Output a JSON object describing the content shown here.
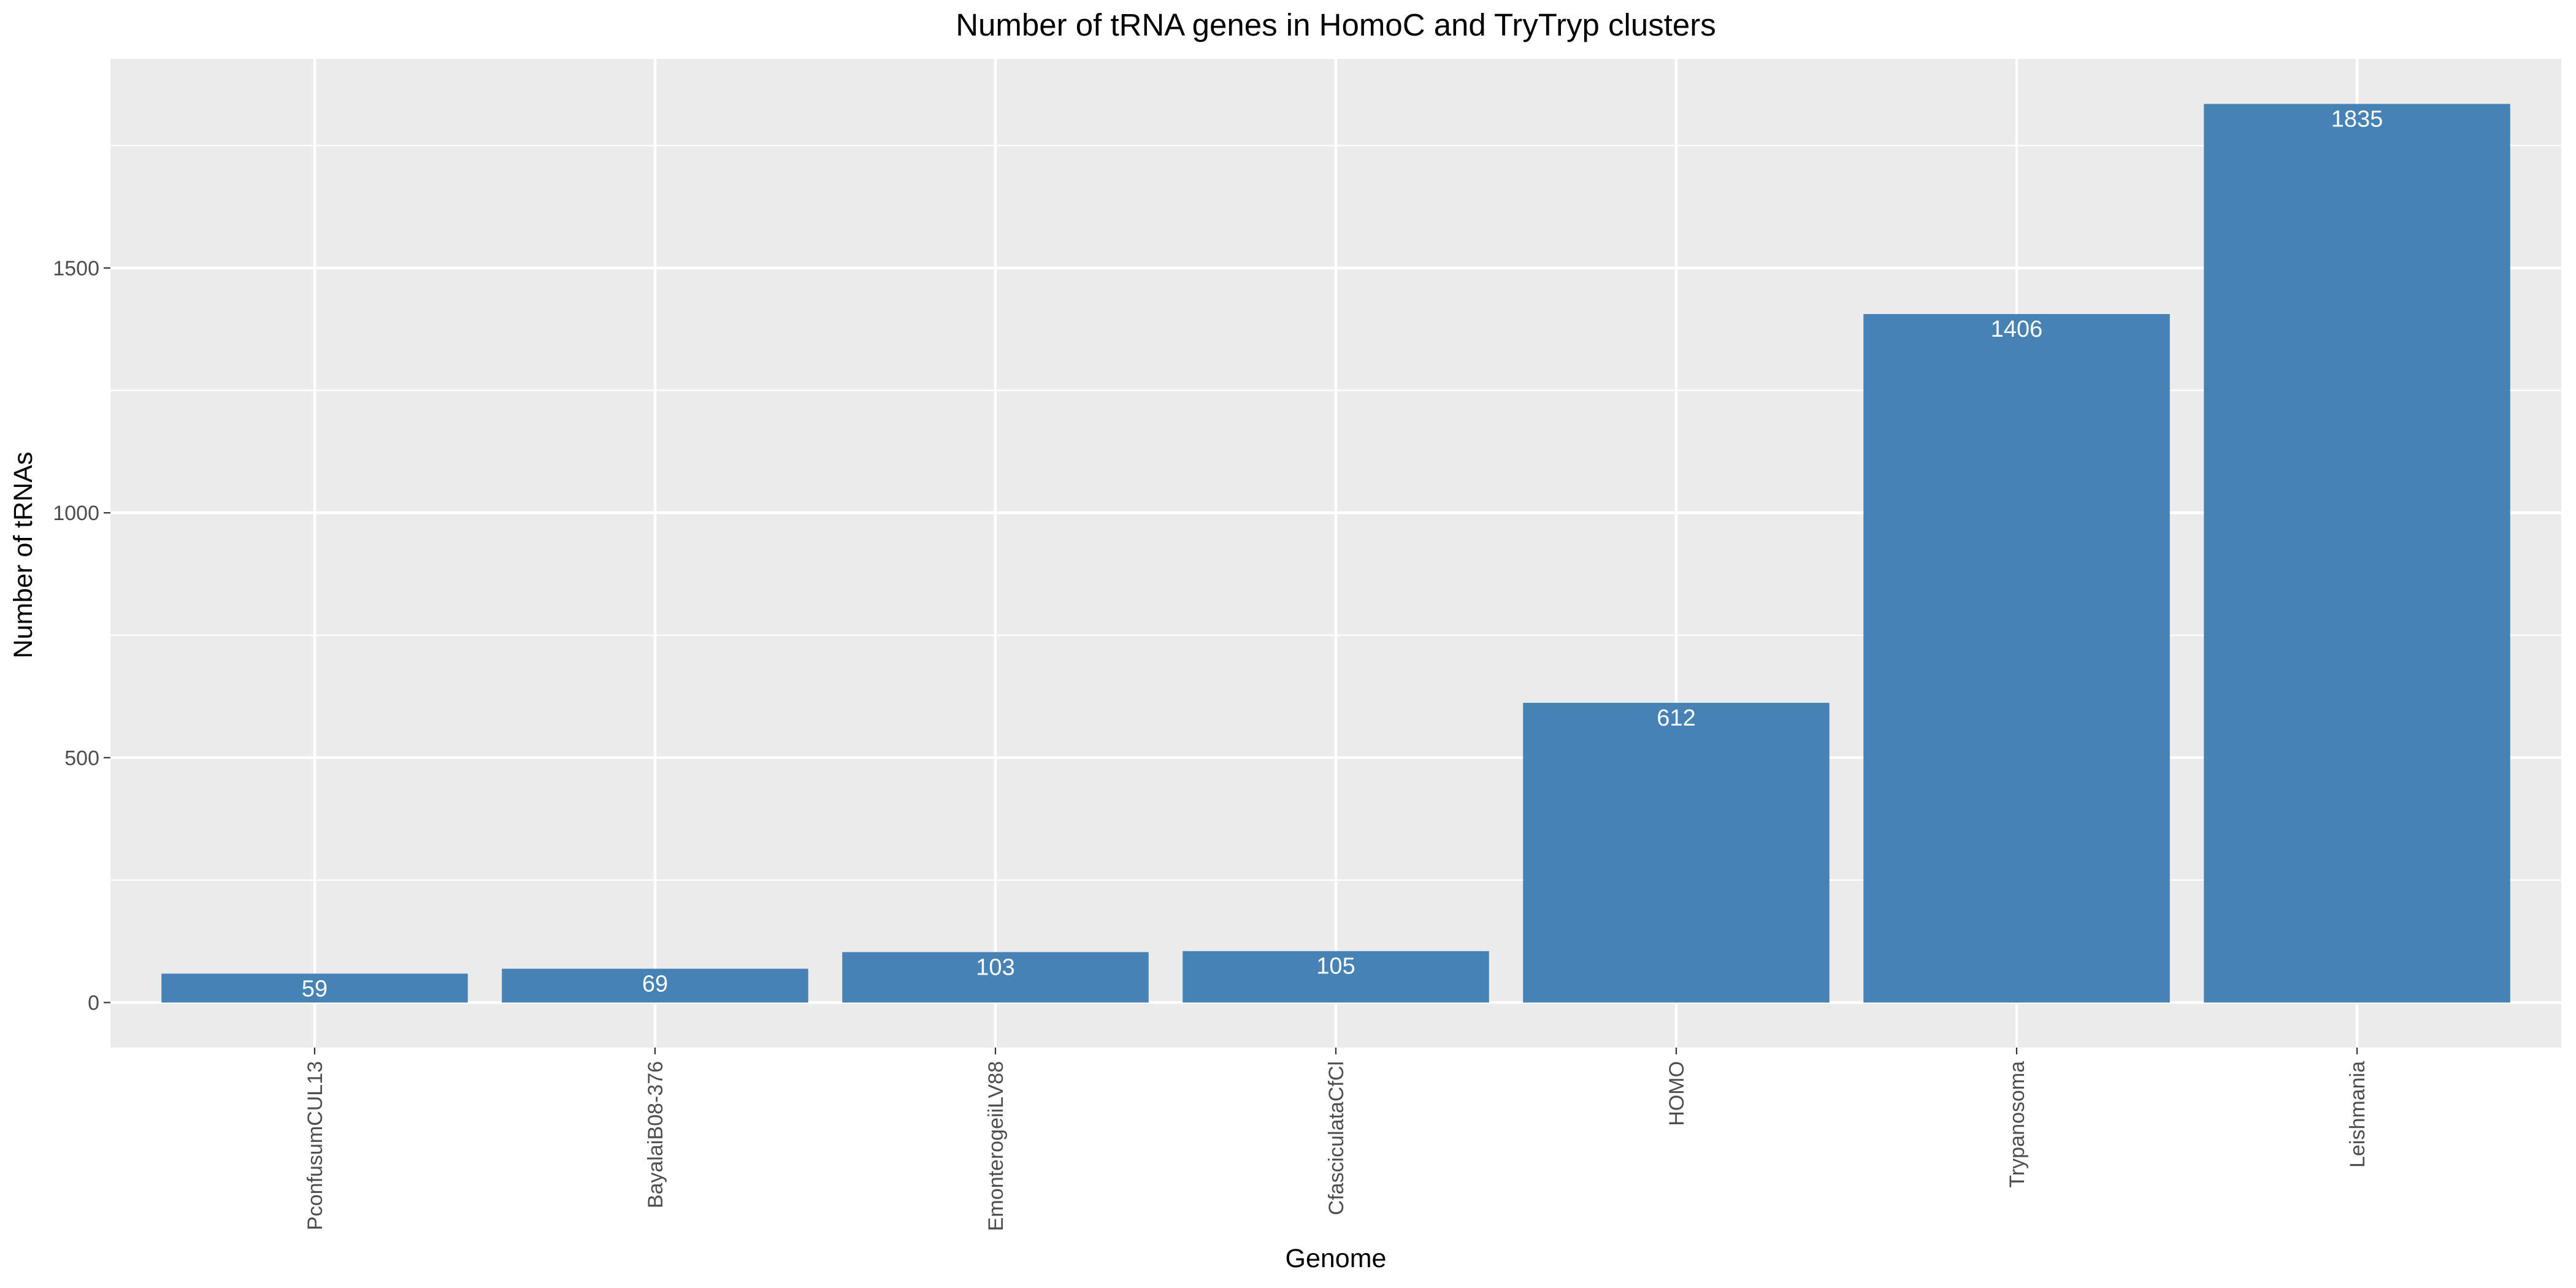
{
  "chart_data": {
    "type": "bar",
    "title": "Number of tRNA genes in HomoC and TryTryp clusters",
    "xlabel": "Genome",
    "ylabel": "Number of tRNAs",
    "categories": [
      "PconfusumCUL13",
      "BayalaiB08-376",
      "EmonterogeiiLV88",
      "CfasciculataCfCl",
      "HOMO",
      "Trypanosoma",
      "Leishmania"
    ],
    "values": [
      59,
      69,
      103,
      105,
      612,
      1406,
      1835
    ],
    "value_labels": [
      "59",
      "69",
      "103",
      "105",
      "612",
      "1406",
      "1835"
    ],
    "y_ticks": [
      0,
      500,
      1000,
      1500
    ],
    "y_tick_labels": [
      "0",
      "500",
      "1000",
      "1500"
    ],
    "ylim": [
      -92,
      1927
    ],
    "grid": true,
    "legend": "none",
    "colors": {
      "bar": "#4682b4",
      "panel": "#ebebeb",
      "grid": "#ffffff",
      "tick_text": "#4d4d4d",
      "tick_mark": "#333333",
      "data_label": "#ffffff"
    }
  }
}
